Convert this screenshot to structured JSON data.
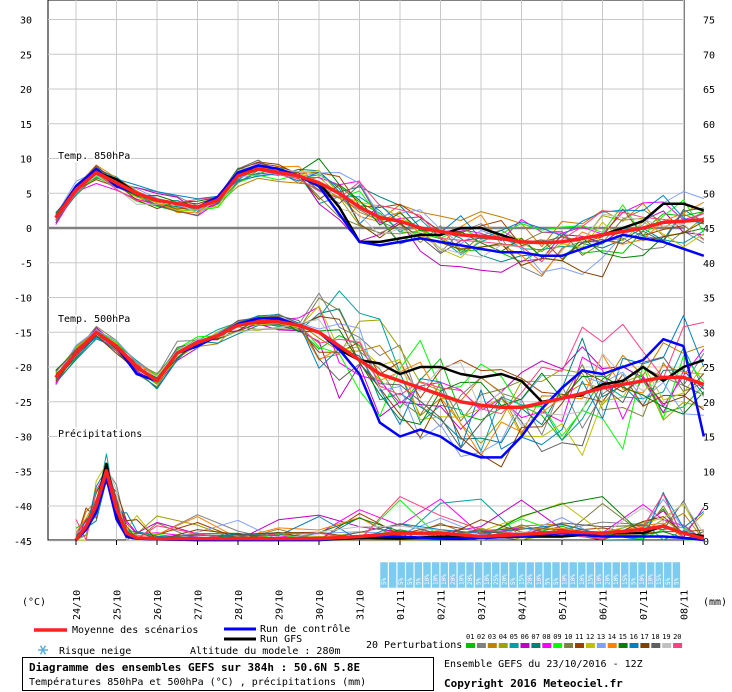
{
  "chart_data": {
    "type": "line",
    "title": "Diagramme des ensembles GEFS sur 384h : 50.6N 5.8E",
    "subtitle": "Températures 850hPa et 500hPa (°C) , précipitations (mm)",
    "left_axis": {
      "unit": "(°C)",
      "ticks": [
        30,
        25,
        20,
        15,
        10,
        5,
        0,
        -5,
        -10,
        -15,
        -20,
        -25,
        -30,
        -35,
        -40,
        -45
      ]
    },
    "right_axis": {
      "unit": "(mm)",
      "ticks": [
        75,
        70,
        65,
        60,
        55,
        50,
        45,
        40,
        35,
        30,
        25,
        20,
        15,
        10,
        5,
        0
      ]
    },
    "x_ticks": [
      "24/10",
      "25/10",
      "26/10",
      "27/10",
      "28/10",
      "29/10",
      "30/10",
      "31/10",
      "01/11",
      "02/11",
      "03/11",
      "04/11",
      "05/11",
      "06/11",
      "07/11",
      "08/11"
    ],
    "panel_labels": [
      "Temp. 850hPa",
      "Temp. 500hPa",
      "Précipitations"
    ],
    "t850": {
      "x": [
        "23/10 12h",
        "24/10 00h",
        "24/10 12h",
        "25/10 00h",
        "25/10 12h",
        "26/10 00h",
        "26/10 12h",
        "27/10 00h",
        "27/10 12h",
        "28/10 00h",
        "28/10 12h",
        "29/10 00h",
        "29/10 12h",
        "30/10 00h",
        "30/10 12h",
        "31/10 00h",
        "31/10 12h",
        "01/11 00h",
        "01/11 12h",
        "02/11 00h",
        "02/11 12h",
        "03/11 00h",
        "03/11 12h",
        "04/11 00h",
        "04/11 12h",
        "05/11 00h",
        "05/11 12h",
        "06/11 00h",
        "06/11 12h",
        "07/11 00h",
        "07/11 12h",
        "08/11 00h",
        "08/11 12h"
      ],
      "series": [
        {
          "name": "Moyenne des scénarios",
          "color": "#ff2020",
          "values": [
            1.5,
            5.5,
            8,
            6.5,
            5,
            4,
            3.5,
            3,
            4,
            7.5,
            8.5,
            8,
            7.5,
            6.5,
            5,
            3,
            1.5,
            1,
            0,
            -0.5,
            -1,
            -1.2,
            -1.5,
            -2,
            -2.1,
            -2,
            -1.5,
            -1,
            -0.5,
            0,
            0.8,
            1,
            1.2
          ]
        },
        {
          "name": "Run de contrôle",
          "color": "#0000ff",
          "values": [
            1.5,
            6,
            8.5,
            6,
            5,
            4,
            3.5,
            3,
            4.5,
            8,
            9,
            8.5,
            7.5,
            6,
            2,
            -2,
            -2.5,
            -2,
            -1.5,
            -2,
            -2.5,
            -3,
            -3.5,
            -3.5,
            -4,
            -4,
            -3,
            -2,
            -1,
            -1.5,
            -2,
            -3,
            -4
          ]
        },
        {
          "name": "Run GFS",
          "color": "#000000",
          "values": [
            1.5,
            6,
            8,
            7,
            5,
            4,
            3.5,
            3,
            4,
            8,
            8.5,
            8,
            7.5,
            6.5,
            3,
            -2,
            -2,
            -1.5,
            -1,
            -1,
            0,
            0,
            -1,
            -2,
            -2,
            -2,
            -1.5,
            -1,
            0,
            1,
            3.5,
            3.5,
            2.5
          ]
        }
      ]
    },
    "t500": {
      "x": [
        "23/10 12h",
        "24/10 00h",
        "24/10 12h",
        "25/10 00h",
        "25/10 12h",
        "26/10 00h",
        "26/10 12h",
        "27/10 00h",
        "27/10 12h",
        "28/10 00h",
        "28/10 12h",
        "29/10 00h",
        "29/10 12h",
        "30/10 00h",
        "30/10 12h",
        "31/10 00h",
        "31/10 12h",
        "01/11 00h",
        "01/11 12h",
        "02/11 00h",
        "02/11 12h",
        "03/11 00h",
        "03/11 12h",
        "04/11 00h",
        "04/11 12h",
        "05/11 00h",
        "05/11 12h",
        "06/11 00h",
        "06/11 12h",
        "07/11 00h",
        "07/11 12h",
        "08/11 00h",
        "08/11 12h"
      ],
      "series": [
        {
          "name": "Moyenne des scénarios",
          "color": "#ff2020",
          "values": [
            -21.5,
            -18,
            -15,
            -17,
            -20,
            -22,
            -18,
            -16.5,
            -15.5,
            -14,
            -13.5,
            -13.5,
            -14,
            -15,
            -17,
            -19,
            -21,
            -22,
            -23,
            -24,
            -25,
            -25.5,
            -25.8,
            -25.8,
            -25.2,
            -24.5,
            -23.8,
            -23,
            -22.5,
            -22,
            -21.5,
            -21.5,
            -22.5
          ]
        },
        {
          "name": "Run de contrôle",
          "color": "#0000ff",
          "values": [
            -21.5,
            -18,
            -15,
            -17,
            -21,
            -22,
            -18,
            -17,
            -15.5,
            -13.8,
            -13,
            -13,
            -14,
            -15,
            -17.5,
            -21,
            -28,
            -30,
            -29,
            -30,
            -32,
            -33,
            -33,
            -30,
            -26,
            -23,
            -20.5,
            -21,
            -20,
            -19,
            -16,
            -17,
            -30
          ]
        },
        {
          "name": "Run GFS",
          "color": "#000000",
          "values": [
            -21.5,
            -18,
            -15,
            -17,
            -21,
            -22,
            -18,
            -17,
            -15.5,
            -14,
            -13.5,
            -13.5,
            -14,
            -15,
            -17.5,
            -19,
            -19.5,
            -21,
            -20,
            -20,
            -21,
            -21.5,
            -21,
            -22,
            -25,
            -24.5,
            -24,
            -22.5,
            -22,
            -20,
            -22,
            -20,
            -19
          ]
        }
      ]
    },
    "precip": {
      "x": [
        "24/10 00h",
        "24/10 06h",
        "24/10 12h",
        "24/10 18h",
        "25/10 00h",
        "25/10 06h",
        "25/10 12h",
        "26/10 00h",
        "27/10 00h",
        "28/10 00h",
        "29/10 00h",
        "30/10 00h",
        "31/10 00h",
        "01/11 00h",
        "02/11 00h",
        "03/11 00h",
        "04/11 00h",
        "05/11 00h",
        "06/11 00h",
        "07/11 00h",
        "07/11 12h",
        "08/11 00h",
        "08/11 12h"
      ],
      "series": [
        {
          "name": "Moyenne des scénarios",
          "color": "#ff2020",
          "values": [
            0,
            2,
            5,
            10,
            4.5,
            1,
            0.3,
            0.2,
            0.2,
            0.2,
            0.2,
            0.2,
            0.5,
            1,
            1,
            0.5,
            0.8,
            1.2,
            1,
            1.5,
            2,
            1,
            0.2
          ]
        },
        {
          "name": "Run de contrôle",
          "color": "#0000ff",
          "values": [
            0,
            1.5,
            4,
            9,
            3,
            0.5,
            0.2,
            0.1,
            0,
            0,
            0,
            0,
            0.5,
            0.5,
            0.2,
            0.3,
            0.5,
            1,
            0.5,
            0.5,
            0.5,
            0.3,
            0
          ]
        },
        {
          "name": "Run GFS",
          "color": "#000000",
          "values": [
            0,
            2,
            5,
            11,
            4,
            0.5,
            0.2,
            0.1,
            0,
            0,
            0,
            0,
            0.3,
            0.2,
            0.5,
            0.3,
            0.5,
            0.5,
            1,
            1,
            2,
            1,
            0.5
          ]
        }
      ]
    },
    "snow_risk_label": "Risque neige",
    "snow_risk_percent": [
      "5%",
      "",
      "5%",
      "5%",
      "5%",
      "10%",
      "10%",
      "10%",
      "20%",
      "10%",
      "20%",
      "5%",
      "10%",
      "25%",
      "20%",
      "5%",
      "15%",
      "20%",
      "10%",
      "5%",
      "5%",
      "10%",
      "10%",
      "10%",
      "15%",
      "10%",
      "20%",
      "10%",
      "15%",
      "5%",
      "10%",
      "10%",
      "15%",
      "5%",
      "5%"
    ],
    "legend": {
      "mean": "Moyenne des scénarios",
      "control": "Run de contrôle",
      "gfs": "Run GFS",
      "perturbations": "20 Perturbations",
      "perturbation_ids": [
        "01",
        "02",
        "03",
        "04",
        "05",
        "06",
        "07",
        "08",
        "09",
        "10",
        "11",
        "12",
        "13",
        "14",
        "15",
        "16",
        "17",
        "18",
        "19",
        "20"
      ],
      "perturbation_colors": [
        "#00c000",
        "#808080",
        "#c08000",
        "#a0a000",
        "#00a0a0",
        "#c000c0",
        "#008080",
        "#ff00ff",
        "#00ff00",
        "#808040",
        "#a04000",
        "#c0c000",
        "#80a0ff",
        "#ff8000",
        "#008000",
        "#0080c0",
        "#804000",
        "#606060",
        "#c0c0c0",
        "#ff4080"
      ]
    },
    "altitude_text": "Altitude du modele : 280m",
    "ensemble_info": "Ensemble GEFS du 23/10/2016 - 12Z",
    "copyright": "Copyright 2016 Meteociel.fr",
    "grid": true
  }
}
